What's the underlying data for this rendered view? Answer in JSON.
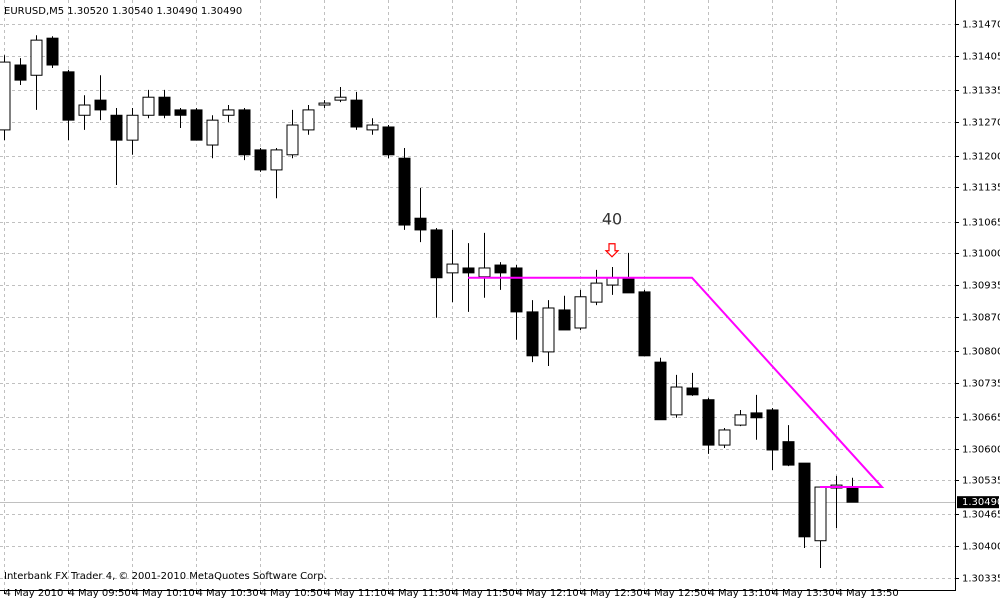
{
  "chart_data": {
    "type": "candlestick",
    "title": "EURUSD,M5  1.30520 1.30540 1.30490 1.30490",
    "footer": "Interbank FX Trader 4, © 2001-2010 MetaQuotes Software Corp.",
    "categories": [
      "4 May 2010",
      null,
      null,
      null,
      "4 May 09:50",
      null,
      null,
      null,
      "4 May 10:10",
      null,
      null,
      null,
      "4 May 10:30",
      null,
      null,
      null,
      "4 May 10:50",
      null,
      null,
      null,
      "4 May 11:10",
      null,
      null,
      null,
      "4 May 11:30",
      null,
      null,
      null,
      "4 May 11:50",
      null,
      null,
      null,
      "4 May 12:10",
      null,
      null,
      null,
      "4 May 12:30",
      null,
      null,
      null,
      "4 May 12:50",
      null,
      null,
      null,
      "4 May 13:10",
      null,
      null,
      null,
      "4 May 13:30",
      null,
      null,
      null,
      "4 May 13:50",
      null
    ],
    "open": [
      1.31253,
      1.31386,
      1.31365,
      1.31441,
      1.31372,
      1.31283,
      1.31314,
      1.31283,
      1.31232,
      1.31283,
      1.3132,
      1.31294,
      1.31294,
      1.31222,
      1.31283,
      1.31294,
      1.31212,
      1.31171,
      1.31202,
      1.31253,
      1.31304,
      1.31314,
      1.31314,
      1.31253,
      1.31259,
      1.31195,
      1.31072,
      1.31048,
      1.3096,
      1.3097,
      1.30952,
      1.30976,
      1.3097,
      1.3088,
      1.30798,
      1.30884,
      1.30847,
      1.309,
      1.30935,
      1.3095,
      1.30921,
      1.30777,
      1.30669,
      1.30724,
      1.307,
      1.30607,
      1.30648,
      1.30673,
      1.30679,
      1.30614,
      1.3057,
      1.30411,
      1.30519,
      1.3052
    ],
    "high": [
      1.31406,
      1.314,
      1.31447,
      1.31445,
      1.31376,
      1.31324,
      1.31365,
      1.31298,
      1.31298,
      1.31335,
      1.31335,
      1.31298,
      1.31298,
      1.31283,
      1.31304,
      1.31298,
      1.31216,
      1.31216,
      1.31294,
      1.31304,
      1.31314,
      1.31341,
      1.31331,
      1.31277,
      1.31263,
      1.31216,
      1.31134,
      1.31052,
      1.31048,
      1.31021,
      1.31042,
      1.30982,
      1.30976,
      1.30904,
      1.30904,
      1.30913,
      1.30925,
      1.30966,
      1.30972,
      1.31001,
      1.30925,
      1.30786,
      1.30751,
      1.30755,
      1.30704,
      1.30642,
      1.30679,
      1.3071,
      1.30683,
      1.30648,
      1.3057,
      1.30523,
      1.30544,
      1.3054
    ],
    "low": [
      1.31232,
      1.31345,
      1.31294,
      1.3138,
      1.31232,
      1.31253,
      1.31273,
      1.3114,
      1.31202,
      1.31277,
      1.31277,
      1.31257,
      1.31232,
      1.31195,
      1.31269,
      1.31191,
      1.31167,
      1.31113,
      1.31195,
      1.31243,
      1.31298,
      1.3131,
      1.31253,
      1.31243,
      1.31195,
      1.31048,
      1.31023,
      1.30868,
      1.309,
      1.3088,
      1.30909,
      1.30925,
      1.30823,
      1.30777,
      1.30769,
      1.30843,
      1.30843,
      1.30894,
      1.30915,
      1.30919,
      1.3079,
      1.30659,
      1.30663,
      1.30708,
      1.30589,
      1.30601,
      1.30646,
      1.30618,
      1.30556,
      1.30564,
      1.30396,
      1.30355,
      1.30437,
      1.3049
    ],
    "close": [
      1.31392,
      1.31355,
      1.31437,
      1.31386,
      1.31273,
      1.31304,
      1.31294,
      1.31232,
      1.31283,
      1.3132,
      1.31283,
      1.31283,
      1.31232,
      1.31273,
      1.31294,
      1.31202,
      1.31171,
      1.31212,
      1.31263,
      1.31294,
      1.31308,
      1.3132,
      1.31259,
      1.31263,
      1.31202,
      1.31058,
      1.31048,
      1.3095,
      1.30978,
      1.3096,
      1.3097,
      1.3096,
      1.3088,
      1.3079,
      1.30888,
      1.30843,
      1.30911,
      1.30939,
      1.3095,
      1.30919,
      1.3079,
      1.30659,
      1.30726,
      1.3071,
      1.30607,
      1.30638,
      1.30669,
      1.30663,
      1.30597,
      1.30566,
      1.30419,
      1.30521,
      1.30525,
      1.3049
    ],
    "bull_color": "#ffffff",
    "bear_color": "#000000",
    "ylim": [
      1.3031,
      1.31509
    ],
    "yticks": [
      {
        "value": 1.3147,
        "label": "1.31470"
      },
      {
        "value": 1.31405,
        "label": "1.31405"
      },
      {
        "value": 1.31335,
        "label": "1.31335"
      },
      {
        "value": 1.3127,
        "label": "1.31270"
      },
      {
        "value": 1.312,
        "label": "1.31200"
      },
      {
        "value": 1.31135,
        "label": "1.31135"
      },
      {
        "value": 1.31065,
        "label": "1.31065"
      },
      {
        "value": 1.31,
        "label": "1.31000"
      },
      {
        "value": 1.30935,
        "label": "1.30935"
      },
      {
        "value": 1.3087,
        "label": "1.30870"
      },
      {
        "value": 1.308,
        "label": "1.30800"
      },
      {
        "value": 1.30735,
        "label": "1.30735"
      },
      {
        "value": 1.30665,
        "label": "1.30665"
      },
      {
        "value": 1.306,
        "label": "1.30600"
      },
      {
        "value": 1.30535,
        "label": "1.30535"
      },
      {
        "value": 1.30465,
        "label": "1.30465"
      },
      {
        "value": 1.304,
        "label": "1.30400"
      },
      {
        "value": 1.30335,
        "label": "1.30335"
      }
    ],
    "current_price": {
      "value": 1.3049,
      "label": "1.30490"
    },
    "grid": true,
    "trendline": {
      "color": "#ff00ff",
      "x": [
        29,
        43,
        54.875,
        51
      ],
      "values": [
        1.3095,
        1.3095,
        1.30521,
        1.30521
      ]
    },
    "annotation": {
      "text": "40",
      "x": 38,
      "y": 1.31068
    },
    "arrow": {
      "x": 38,
      "y": 1.30995,
      "color": "#ff0000"
    }
  }
}
